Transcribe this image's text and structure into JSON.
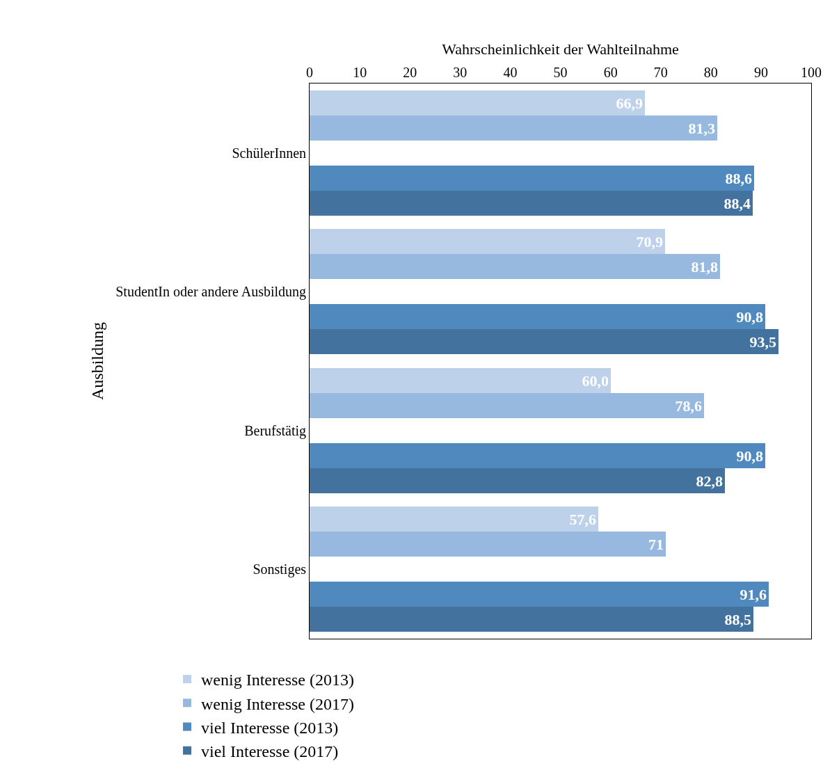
{
  "chart_data": {
    "type": "bar",
    "orientation": "horizontal",
    "xlabel": "Wahrscheinlichkeit der Wahlteilnahme",
    "ylabel": "Ausbildung",
    "categories": [
      "SchülerInnen",
      "StudentIn oder andere Ausbildung",
      "Berufstätig",
      "Sonstiges"
    ],
    "series": [
      {
        "name": "wenig Interesse (2013)",
        "color": "#bdd1ea",
        "values": [
          66.9,
          70.9,
          60.0,
          57.6
        ],
        "value_labels": [
          "66,9",
          "70,9",
          "60,0",
          "57,6"
        ]
      },
      {
        "name": "wenig Interesse (2017)",
        "color": "#98b9df",
        "values": [
          81.3,
          81.8,
          78.6,
          71
        ],
        "value_labels": [
          "81,3",
          "81,8",
          "78,6",
          "71"
        ]
      },
      {
        "name": "viel Interesse (2013)",
        "color": "#4f89bd",
        "values": [
          88.6,
          90.8,
          90.8,
          91.6
        ],
        "value_labels": [
          "88,6",
          "90,8",
          "90,8",
          "91,6"
        ]
      },
      {
        "name": "viel Interesse (2017)",
        "color": "#44729e",
        "values": [
          88.4,
          93.5,
          82.8,
          88.5
        ],
        "value_labels": [
          "88,4",
          "93,5",
          "82,8",
          "88,5"
        ]
      }
    ],
    "xlim": [
      0,
      100
    ],
    "xticks": [
      0,
      10,
      20,
      30,
      40,
      50,
      60,
      70,
      80,
      90,
      100
    ],
    "legend": "bottom"
  }
}
